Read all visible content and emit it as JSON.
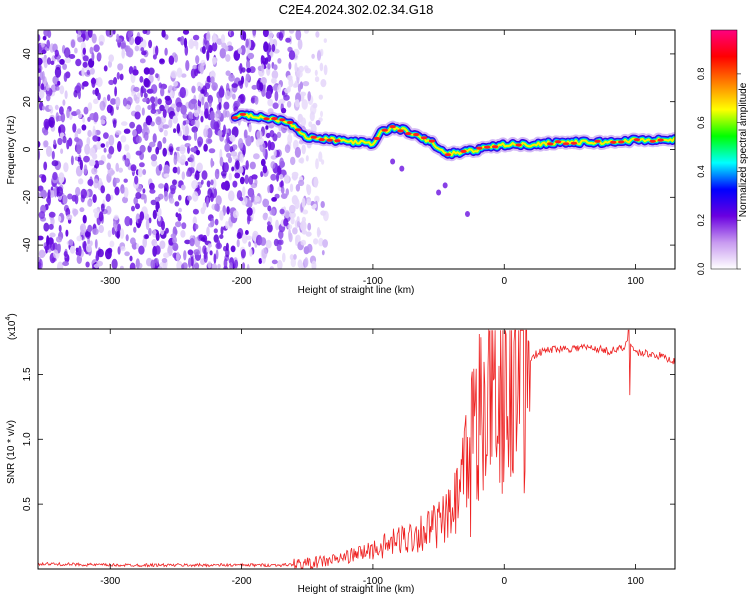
{
  "title": "C2E4.2024.302.02.34.G18",
  "chart_data": [
    {
      "type": "heatmap",
      "xlabel": "Height of straight line (km)",
      "ylabel": "Frequency (Hz)",
      "xlim": [
        -355,
        130
      ],
      "ylim": [
        -50,
        50
      ],
      "xticks": [
        -300,
        -200,
        -100,
        0,
        100
      ],
      "yticks": [
        -40,
        -20,
        0,
        20,
        40
      ],
      "noise_region_x": [
        -355,
        -150
      ],
      "signal_trace": {
        "x": [
          -205,
          -190,
          -180,
          -165,
          -150,
          -130,
          -110,
          -100,
          -95,
          -85,
          -75,
          -65,
          -55,
          -45,
          -30,
          -20,
          -10,
          0,
          20,
          40,
          60,
          80,
          100,
          130
        ],
        "y": [
          14,
          14,
          13,
          12,
          5,
          4,
          3,
          2,
          7,
          9,
          8,
          5,
          3,
          -2,
          -1,
          0,
          1,
          2,
          2,
          3,
          3,
          3,
          4,
          4
        ]
      },
      "colorbar": {
        "label": "Normalized spectral amplitude",
        "range": [
          0,
          1
        ],
        "ticks": [
          "0.0",
          "0.2",
          "0.4",
          "0.6",
          "0.8"
        ],
        "colors": [
          "#ffffff",
          "#c89af0",
          "#6a00e0",
          "#0000ff",
          "#00ffff",
          "#00ff00",
          "#ffff00",
          "#ff8000",
          "#ff0000",
          "#ff0080"
        ]
      },
      "grid": false
    },
    {
      "type": "line",
      "xlabel": "Height of straight line (km)",
      "ylabel": "SNR (10 * v/v)",
      "yscale_label": "(x10",
      "yscale_exp": "4",
      "xlim": [
        -355,
        130
      ],
      "ylim": [
        0,
        1.85
      ],
      "xticks": [
        -300,
        -200,
        -100,
        0,
        100
      ],
      "yticks": [
        "0.5",
        "1.0",
        "1.5"
      ],
      "ytick_values": [
        0.5,
        1.0,
        1.5
      ],
      "series": [
        {
          "color": "#ee2222",
          "x": [
            -355,
            -300,
            -250,
            -200,
            -170,
            -150,
            -130,
            -110,
            -90,
            -80,
            -70,
            -60,
            -50,
            -40,
            -35,
            -30,
            -25,
            -20,
            -15,
            -10,
            -5,
            0,
            5,
            10,
            15,
            20,
            25,
            30,
            40,
            50,
            60,
            70,
            80,
            90,
            95,
            100,
            110,
            120,
            130
          ],
          "y": [
            0.04,
            0.03,
            0.03,
            0.03,
            0.03,
            0.04,
            0.07,
            0.12,
            0.18,
            0.22,
            0.26,
            0.3,
            0.34,
            0.42,
            0.55,
            0.75,
            1.0,
            1.2,
            1.3,
            1.35,
            1.4,
            1.45,
            1.5,
            1.55,
            1.6,
            1.63,
            1.66,
            1.68,
            1.7,
            1.7,
            1.71,
            1.7,
            1.68,
            1.7,
            1.75,
            1.67,
            1.66,
            1.64,
            1.6
          ]
        }
      ],
      "grid": false
    }
  ]
}
